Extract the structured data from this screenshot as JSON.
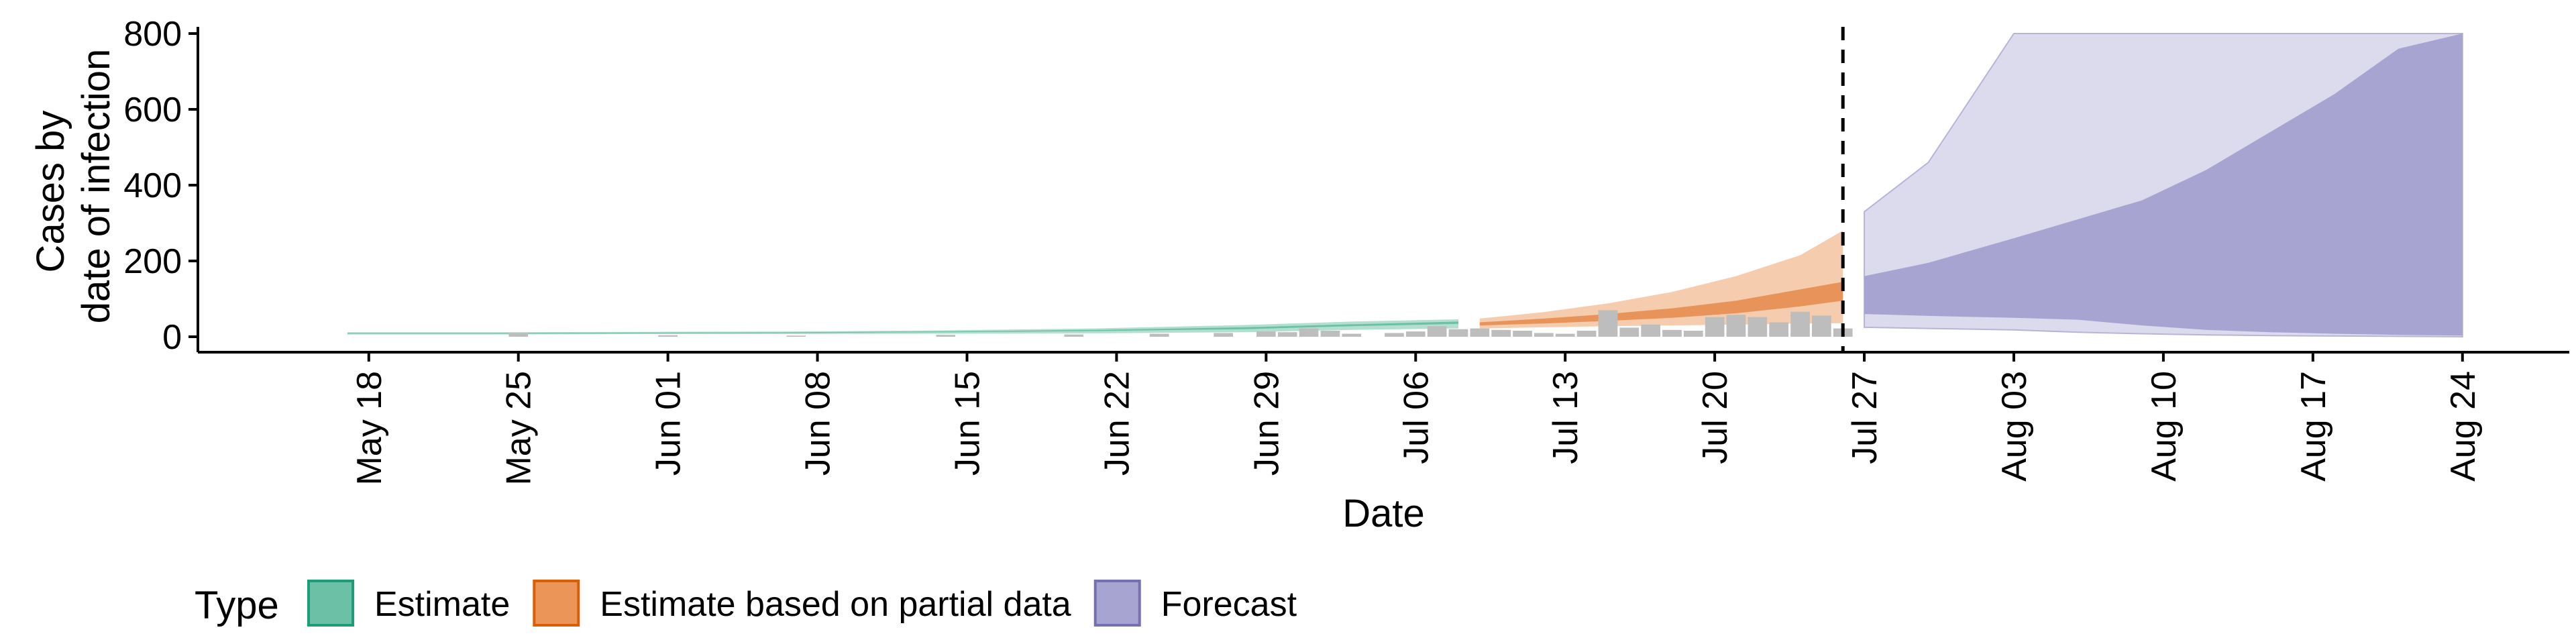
{
  "chart_data": {
    "type": "area",
    "xlabel": "Date",
    "ylabel_lines": [
      "Cases by",
      "date of infection"
    ],
    "ylim": [
      0,
      800
    ],
    "xlim": [
      "2020-05-10",
      "2020-08-29"
    ],
    "grid": false,
    "y_ticks": [
      0,
      200,
      400,
      600,
      800
    ],
    "x_ticks": [
      {
        "date": "2020-05-18",
        "label": "May 18"
      },
      {
        "date": "2020-05-25",
        "label": "May 25"
      },
      {
        "date": "2020-06-01",
        "label": "Jun 01"
      },
      {
        "date": "2020-06-08",
        "label": "Jun 08"
      },
      {
        "date": "2020-06-15",
        "label": "Jun 15"
      },
      {
        "date": "2020-06-22",
        "label": "Jun 22"
      },
      {
        "date": "2020-06-29",
        "label": "Jun 29"
      },
      {
        "date": "2020-07-06",
        "label": "Jul 06"
      },
      {
        "date": "2020-07-13",
        "label": "Jul 13"
      },
      {
        "date": "2020-07-20",
        "label": "Jul 20"
      },
      {
        "date": "2020-07-27",
        "label": "Jul 27"
      },
      {
        "date": "2020-08-03",
        "label": "Aug 03"
      },
      {
        "date": "2020-08-10",
        "label": "Aug 10"
      },
      {
        "date": "2020-08-17",
        "label": "Aug 17"
      },
      {
        "date": "2020-08-24",
        "label": "Aug 24"
      }
    ],
    "vline_date": "2020-07-26",
    "legend": {
      "title": "Type",
      "position": "bottom-left",
      "items": [
        {
          "label": "Estimate",
          "fill": "#6cc0a6",
          "stroke": "#1b9e77"
        },
        {
          "label": "Estimate based on partial data",
          "fill": "#eb9558",
          "stroke": "#d95f02"
        },
        {
          "label": "Forecast",
          "fill": "#a8a4d1",
          "stroke": "#7570b3"
        }
      ]
    },
    "colors": {
      "estimate_outer": "#b3dfd1",
      "estimate_inner": "#6cc0a6",
      "partial_outer": "#f5ccad",
      "partial_inner": "#e8935a",
      "forecast_outer": "#dcdbed",
      "forecast_inner": "#a8a4d1",
      "forecast_border": "#b7b4d8",
      "observed_bars": "#bdbdbd"
    },
    "series": [
      {
        "name": "Estimate",
        "dates": [
          "2020-05-17",
          "2020-05-24",
          "2020-05-31",
          "2020-06-07",
          "2020-06-14",
          "2020-06-21",
          "2020-06-28",
          "2020-07-03",
          "2020-07-08"
        ],
        "outer_lower": [
          6,
          6,
          7,
          7,
          8,
          9,
          12,
          18,
          22
        ],
        "outer_upper": [
          12,
          12,
          13,
          14,
          17,
          22,
          31,
          40,
          46
        ],
        "inner_lower": [
          8,
          8,
          9,
          10,
          12,
          15,
          20,
          28,
          34
        ],
        "inner_upper": [
          10,
          10,
          11,
          12,
          14,
          18,
          25,
          33,
          40
        ]
      },
      {
        "name": "Estimate based on partial data",
        "dates": [
          "2020-07-09",
          "2020-07-12",
          "2020-07-15",
          "2020-07-18",
          "2020-07-21",
          "2020-07-24",
          "2020-07-26"
        ],
        "outer_lower": [
          22,
          25,
          28,
          30,
          32,
          35,
          36
        ],
        "outer_upper": [
          48,
          65,
          88,
          118,
          160,
          215,
          280
        ],
        "inner_lower": [
          30,
          35,
          42,
          50,
          62,
          80,
          95
        ],
        "inner_upper": [
          38,
          48,
          60,
          75,
          95,
          125,
          145
        ]
      },
      {
        "name": "Forecast",
        "dates": [
          "2020-07-27",
          "2020-07-30",
          "2020-08-03",
          "2020-08-06",
          "2020-08-09",
          "2020-08-12",
          "2020-08-15",
          "2020-08-18",
          "2020-08-21",
          "2020-08-24"
        ],
        "outer_lower": [
          25,
          22,
          18,
          12,
          8,
          5,
          3,
          2,
          1,
          0
        ],
        "outer_upper": [
          330,
          460,
          800,
          800,
          800,
          800,
          800,
          800,
          800,
          800
        ],
        "inner_lower": [
          60,
          55,
          50,
          45,
          30,
          18,
          12,
          8,
          5,
          3
        ],
        "inner_upper": [
          160,
          195,
          260,
          310,
          360,
          440,
          540,
          640,
          760,
          800
        ]
      }
    ],
    "observed": {
      "dates": [
        "2020-05-25",
        "2020-06-01",
        "2020-06-07",
        "2020-06-14",
        "2020-06-20",
        "2020-06-24",
        "2020-06-27",
        "2020-06-29",
        "2020-06-30",
        "2020-07-01",
        "2020-07-02",
        "2020-07-03",
        "2020-07-05",
        "2020-07-06",
        "2020-07-07",
        "2020-07-08",
        "2020-07-09",
        "2020-07-10",
        "2020-07-11",
        "2020-07-12",
        "2020-07-13",
        "2020-07-14",
        "2020-07-15",
        "2020-07-16",
        "2020-07-17",
        "2020-07-18",
        "2020-07-19",
        "2020-07-20",
        "2020-07-21",
        "2020-07-22",
        "2020-07-23",
        "2020-07-24",
        "2020-07-25",
        "2020-07-26"
      ],
      "values": [
        10,
        4,
        3,
        5,
        6,
        8,
        10,
        14,
        12,
        22,
        16,
        8,
        10,
        14,
        28,
        20,
        22,
        18,
        16,
        10,
        8,
        16,
        70,
        24,
        32,
        18,
        16,
        52,
        58,
        52,
        38,
        66,
        56,
        22
      ]
    }
  }
}
